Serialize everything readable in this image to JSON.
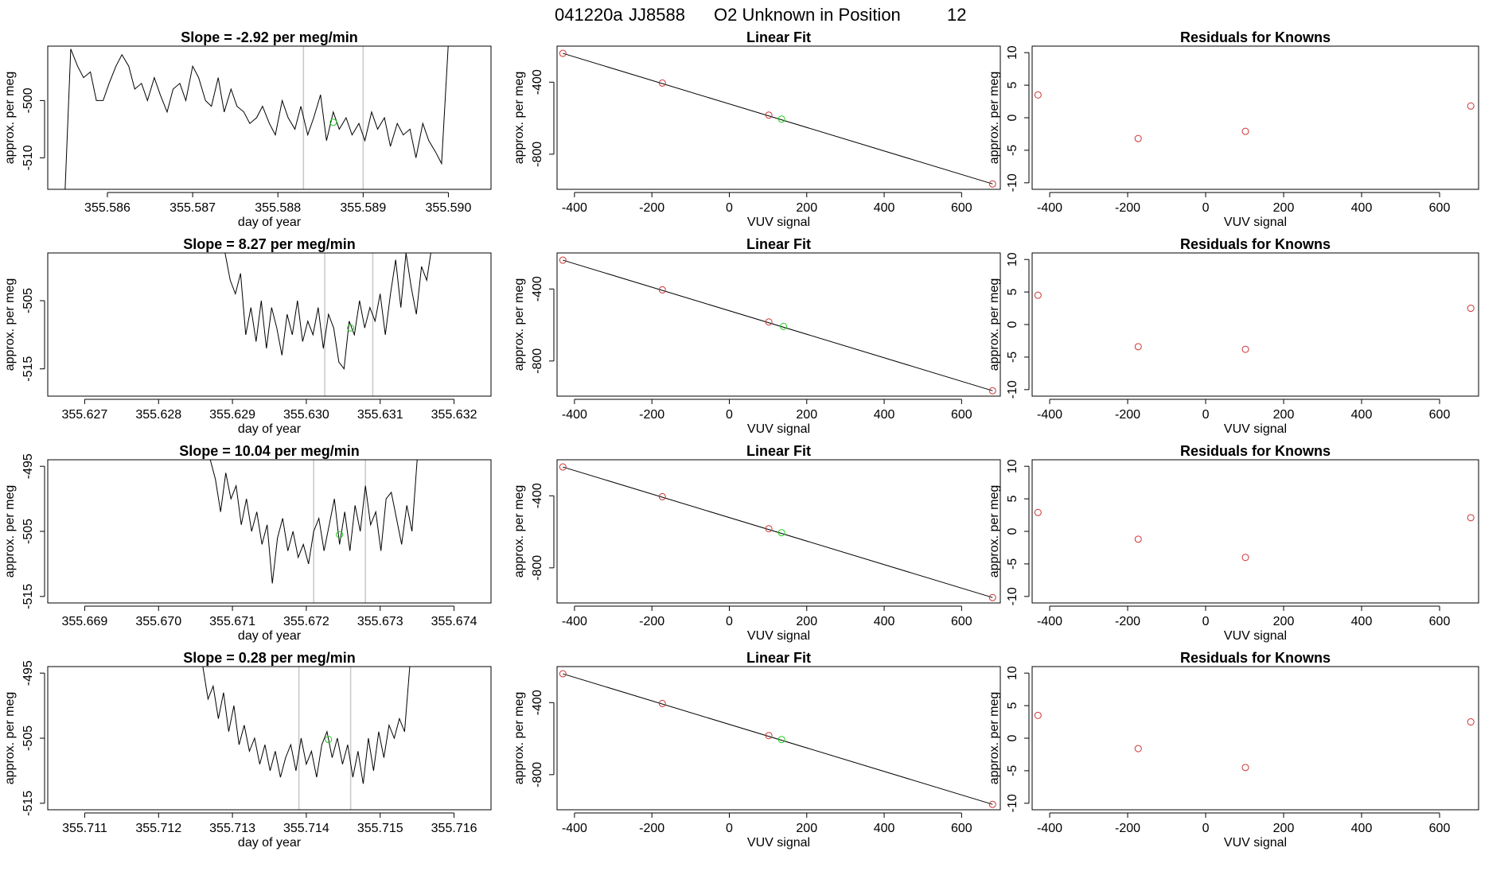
{
  "figure": {
    "title_parts": [
      "041220a",
      "JJ8588",
      "O2 Unknown in Position",
      "12"
    ]
  },
  "colors": {
    "line": "#000000",
    "known": "#cc3333",
    "unknown": "#22cc22",
    "marker": "#c8c8c8",
    "axis": "#000000"
  },
  "chart_data": [
    {
      "type": "line",
      "row": 1,
      "title": "Slope =  -2.92  per meg/min",
      "xlabel": "day of year",
      "ylabel": "approx. per meg",
      "xlim": [
        355.5853,
        355.5905
      ],
      "ylim": [
        -515.5,
        -490.5
      ],
      "xticks": [
        355.586,
        355.587,
        355.588,
        355.589,
        355.59
      ],
      "xtick_labels": [
        "355.586",
        "355.587",
        "355.588",
        "355.589",
        "355.590"
      ],
      "yticks": [
        -500,
        -510
      ],
      "ytick_labels": [
        "-500",
        "-510"
      ],
      "x": [
        355.5855,
        355.58557,
        355.58565,
        355.58572,
        355.5858,
        355.58587,
        355.58595,
        355.58602,
        355.5861,
        355.58617,
        355.58625,
        355.58632,
        355.5864,
        355.58647,
        355.58655,
        355.58662,
        355.5867,
        355.58677,
        355.58685,
        355.58692,
        355.587,
        355.58707,
        355.58715,
        355.58722,
        355.5873,
        355.58737,
        355.58745,
        355.58752,
        355.5876,
        355.58767,
        355.58775,
        355.58782,
        355.5879,
        355.58797,
        355.58805,
        355.58812,
        355.5882,
        355.58827,
        355.58835,
        355.58842,
        355.5885,
        355.58857,
        355.58865,
        355.58872,
        355.5888,
        355.58887,
        355.58895,
        355.58902,
        355.5891,
        355.58917,
        355.58925,
        355.58932,
        355.5894,
        355.58947,
        355.58955,
        355.58962,
        355.5897,
        355.58977,
        355.58985,
        355.58992,
        355.59
      ],
      "y": [
        -517,
        -491,
        -494,
        -496,
        -495,
        -500,
        -500,
        -497,
        -494,
        -492,
        -494,
        -498,
        -497,
        -500,
        -496,
        -499,
        -502,
        -498,
        -497,
        -500,
        -494,
        -496,
        -500,
        -501,
        -496,
        -502,
        -498,
        -501,
        -502,
        -504,
        -503,
        -501,
        -504,
        -506,
        -500,
        -503,
        -505,
        -501,
        -506,
        -503,
        -499,
        -507,
        -502,
        -505,
        -503,
        -506,
        -504,
        -507,
        -502,
        -505,
        -503,
        -508,
        -504,
        -506,
        -505,
        -510,
        -504,
        -507,
        -509,
        -511,
        -490
      ],
      "markers_x": [
        355.5883,
        355.589
      ],
      "unknown_point": {
        "x": 355.58865,
        "y": -503.8
      }
    },
    {
      "type": "scatter",
      "row": 1,
      "title": "Linear Fit",
      "xlabel": "VUV signal",
      "ylabel": "approx. per meg",
      "xlim": [
        -445,
        700
      ],
      "ylim": [
        -995,
        -200
      ],
      "xticks": [
        -400,
        -200,
        0,
        200,
        400,
        600
      ],
      "xtick_labels": [
        "-400",
        "-200",
        "0",
        "200",
        "400",
        "600"
      ],
      "yticks": [
        -400,
        -800
      ],
      "ytick_labels": [
        "-400",
        "-800"
      ],
      "fit_line": {
        "x": [
          -430,
          680
        ],
        "y": [
          -240,
          -965
        ]
      },
      "known_points": {
        "x": [
          -430,
          -173,
          102,
          680
        ],
        "y": [
          -240,
          -405,
          -583,
          -965
        ]
      },
      "unknown_point": {
        "x": 135,
        "y": -605
      }
    },
    {
      "type": "scatter",
      "row": 1,
      "title": "Residuals for Knowns",
      "xlabel": "VUV signal",
      "ylabel": "approx. per meg",
      "xlim": [
        -445,
        700
      ],
      "ylim": [
        -11,
        11
      ],
      "xticks": [
        -400,
        -200,
        0,
        200,
        400,
        600
      ],
      "xtick_labels": [
        "-400",
        "-200",
        "0",
        "200",
        "400",
        "600"
      ],
      "yticks": [
        10,
        5,
        0,
        -5,
        -10
      ],
      "ytick_labels": [
        "10",
        "5",
        "0",
        "-5",
        "-10"
      ],
      "known_points": {
        "x": [
          -430,
          -173,
          102,
          680
        ],
        "y": [
          3.5,
          -3.2,
          -2.1,
          1.8
        ]
      }
    },
    {
      "type": "line",
      "row": 2,
      "title": "Slope =  8.27  per meg/min",
      "xlabel": "day of year",
      "ylabel": "approx. per meg",
      "xlim": [
        355.6265,
        355.6325
      ],
      "ylim": [
        -519,
        -498
      ],
      "xticks": [
        355.627,
        355.628,
        355.629,
        355.63,
        355.631,
        355.632
      ],
      "xtick_labels": [
        "355.627",
        "355.628",
        "355.629",
        "355.630",
        "355.631",
        "355.632"
      ],
      "yticks": [
        -505,
        -515
      ],
      "ytick_labels": [
        "-505",
        "-515"
      ],
      "x": [
        355.6289,
        355.62897,
        355.62904,
        355.62911,
        355.62918,
        355.62925,
        355.62932,
        355.62939,
        355.62946,
        355.62953,
        355.6296,
        355.62967,
        355.62974,
        355.62981,
        355.62988,
        355.62995,
        355.63002,
        355.63009,
        355.63016,
        355.63023,
        355.6303,
        355.63037,
        355.63044,
        355.63051,
        355.63058,
        355.63065,
        355.63072,
        355.63079,
        355.63086,
        355.63093,
        355.631,
        355.63107,
        355.63114,
        355.63121,
        355.63128,
        355.63135,
        355.63142,
        355.63149,
        355.63156,
        355.63163,
        355.6317
      ],
      "y": [
        -498,
        -502,
        -504,
        -501,
        -510,
        -506,
        -511,
        -505,
        -512,
        -506,
        -509,
        -513,
        -507,
        -510,
        -505,
        -511,
        -508,
        -510,
        -506,
        -512,
        -507,
        -509,
        -514,
        -515,
        -508,
        -510,
        -505,
        -509,
        -506,
        -508,
        -504,
        -510,
        -504,
        -499,
        -506,
        -498,
        -503,
        -507,
        -500,
        -502,
        -497
      ],
      "markers_x": [
        355.63025,
        355.6309
      ],
      "unknown_point": {
        "x": 355.6306,
        "y": -509
      }
    },
    {
      "type": "scatter",
      "row": 2,
      "title": "Linear Fit",
      "xlabel": "VUV signal",
      "ylabel": "approx. per meg",
      "xlim": [
        -445,
        700
      ],
      "ylim": [
        -995,
        -200
      ],
      "xticks": [
        -400,
        -200,
        0,
        200,
        400,
        600
      ],
      "xtick_labels": [
        "-400",
        "-200",
        "0",
        "200",
        "400",
        "600"
      ],
      "yticks": [
        -400,
        -800
      ],
      "ytick_labels": [
        "-400",
        "-800"
      ],
      "fit_line": {
        "x": [
          -430,
          680
        ],
        "y": [
          -240,
          -965
        ]
      },
      "known_points": {
        "x": [
          -430,
          -173,
          102,
          680
        ],
        "y": [
          -240,
          -405,
          -583,
          -965
        ]
      },
      "unknown_point": {
        "x": 140,
        "y": -608
      }
    },
    {
      "type": "scatter",
      "row": 2,
      "title": "Residuals for Knowns",
      "xlabel": "VUV signal",
      "ylabel": "approx. per meg",
      "xlim": [
        -445,
        700
      ],
      "ylim": [
        -11,
        11
      ],
      "xticks": [
        -400,
        -200,
        0,
        200,
        400,
        600
      ],
      "xtick_labels": [
        "-400",
        "-200",
        "0",
        "200",
        "400",
        "600"
      ],
      "yticks": [
        10,
        5,
        0,
        -5,
        -10
      ],
      "ytick_labels": [
        "10",
        "5",
        "0",
        "-5",
        "-10"
      ],
      "known_points": {
        "x": [
          -430,
          -173,
          102,
          680
        ],
        "y": [
          4.5,
          -3.4,
          -3.8,
          2.5
        ]
      }
    },
    {
      "type": "line",
      "row": 3,
      "title": "Slope =  10.04  per meg/min",
      "xlabel": "day of year",
      "ylabel": "approx. per meg",
      "xlim": [
        355.6685,
        355.6745
      ],
      "ylim": [
        -516,
        -494
      ],
      "xticks": [
        355.669,
        355.67,
        355.671,
        355.672,
        355.673,
        355.674
      ],
      "xtick_labels": [
        "355.669",
        "355.670",
        "355.671",
        "355.672",
        "355.673",
        "355.674"
      ],
      "yticks": [
        -495,
        -505,
        -515
      ],
      "ytick_labels": [
        "-495",
        "-505",
        "-515"
      ],
      "x": [
        355.6707,
        355.67077,
        355.67084,
        355.67091,
        355.67098,
        355.67105,
        355.67112,
        355.67119,
        355.67126,
        355.67133,
        355.6714,
        355.67147,
        355.67154,
        355.67161,
        355.67168,
        355.67175,
        355.67182,
        355.67189,
        355.67196,
        355.67203,
        355.6721,
        355.67217,
        355.67224,
        355.67231,
        355.67238,
        355.67245,
        355.67252,
        355.67259,
        355.67266,
        355.67273,
        355.6728,
        355.67287,
        355.67294,
        355.67301,
        355.67308,
        355.67315,
        355.67322,
        355.67329,
        355.67336,
        355.67343,
        355.6735
      ],
      "y": [
        -494,
        -497,
        -502,
        -496,
        -500,
        -498,
        -504,
        -500,
        -505,
        -502,
        -507,
        -504,
        -513,
        -506,
        -503,
        -508,
        -505,
        -509,
        -507,
        -510,
        -505,
        -503,
        -508,
        -504,
        -500,
        -507,
        -502,
        -508,
        -501,
        -505,
        -498,
        -504,
        -502,
        -508,
        -500,
        -499,
        -503,
        -507,
        -501,
        -505,
        -494
      ],
      "markers_x": [
        355.6721,
        355.6728
      ],
      "unknown_point": {
        "x": 355.67245,
        "y": -505.5
      }
    },
    {
      "type": "scatter",
      "row": 3,
      "title": "Linear Fit",
      "xlabel": "VUV signal",
      "ylabel": "approx. per meg",
      "xlim": [
        -445,
        700
      ],
      "ylim": [
        -995,
        -200
      ],
      "xticks": [
        -400,
        -200,
        0,
        200,
        400,
        600
      ],
      "xtick_labels": [
        "-400",
        "-200",
        "0",
        "200",
        "400",
        "600"
      ],
      "yticks": [
        -400,
        -800
      ],
      "ytick_labels": [
        "-400",
        "-800"
      ],
      "fit_line": {
        "x": [
          -430,
          680
        ],
        "y": [
          -240,
          -965
        ]
      },
      "known_points": {
        "x": [
          -430,
          -173,
          102,
          680
        ],
        "y": [
          -240,
          -405,
          -583,
          -965
        ]
      },
      "unknown_point": {
        "x": 135,
        "y": -605
      }
    },
    {
      "type": "scatter",
      "row": 3,
      "title": "Residuals for Knowns",
      "xlabel": "VUV signal",
      "ylabel": "approx. per meg",
      "xlim": [
        -445,
        700
      ],
      "ylim": [
        -11,
        11
      ],
      "xticks": [
        -400,
        -200,
        0,
        200,
        400,
        600
      ],
      "xtick_labels": [
        "-400",
        "-200",
        "0",
        "200",
        "400",
        "600"
      ],
      "yticks": [
        10,
        5,
        0,
        -5,
        -10
      ],
      "ytick_labels": [
        "10",
        "5",
        "0",
        "-5",
        "-10"
      ],
      "known_points": {
        "x": [
          -430,
          -173,
          102,
          680
        ],
        "y": [
          2.9,
          -1.2,
          -4.0,
          2.1
        ]
      }
    },
    {
      "type": "line",
      "row": 4,
      "title": "Slope =  0.28  per meg/min",
      "xlabel": "day of year",
      "ylabel": "approx. per meg",
      "xlim": [
        355.7105,
        355.7165
      ],
      "ylim": [
        -516,
        -494
      ],
      "xticks": [
        355.711,
        355.712,
        355.713,
        355.714,
        355.715,
        355.716
      ],
      "xtick_labels": [
        "355.711",
        "355.712",
        "355.713",
        "355.714",
        "355.715",
        "355.716"
      ],
      "yticks": [
        -495,
        -505,
        -515
      ],
      "ytick_labels": [
        "-495",
        "-505",
        "-515"
      ],
      "x": [
        355.7126,
        355.71267,
        355.71274,
        355.71281,
        355.71288,
        355.71295,
        355.71302,
        355.71309,
        355.71316,
        355.71323,
        355.7133,
        355.71337,
        355.71344,
        355.71351,
        355.71358,
        355.71365,
        355.71372,
        355.71379,
        355.71386,
        355.71393,
        355.714,
        355.71407,
        355.71414,
        355.71421,
        355.71428,
        355.71435,
        355.71442,
        355.71449,
        355.71456,
        355.71463,
        355.7147,
        355.71477,
        355.71484,
        355.71491,
        355.71498,
        355.71505,
        355.71512,
        355.71519,
        355.71526,
        355.71533,
        355.7154
      ],
      "y": [
        -494,
        -499,
        -497,
        -502,
        -498,
        -504,
        -500,
        -506,
        -503,
        -507,
        -505,
        -509,
        -506,
        -510,
        -507,
        -511,
        -508,
        -506,
        -510,
        -505,
        -509,
        -507,
        -511,
        -506,
        -504,
        -508,
        -505,
        -509,
        -506,
        -511,
        -507,
        -512,
        -505,
        -510,
        -504,
        -508,
        -503,
        -505,
        -502,
        -504,
        -494
      ],
      "markers_x": [
        355.7139,
        355.7146
      ],
      "unknown_point": {
        "x": 355.7143,
        "y": -505.2
      }
    },
    {
      "type": "scatter",
      "row": 4,
      "title": "Linear Fit",
      "xlabel": "VUV signal",
      "ylabel": "approx. per meg",
      "xlim": [
        -445,
        700
      ],
      "ylim": [
        -995,
        -200
      ],
      "xticks": [
        -400,
        -200,
        0,
        200,
        400,
        600
      ],
      "xtick_labels": [
        "-400",
        "-200",
        "0",
        "200",
        "400",
        "600"
      ],
      "yticks": [
        -400,
        -800
      ],
      "ytick_labels": [
        "-400",
        "-800"
      ],
      "fit_line": {
        "x": [
          -430,
          680
        ],
        "y": [
          -240,
          -965
        ]
      },
      "known_points": {
        "x": [
          -430,
          -173,
          102,
          680
        ],
        "y": [
          -240,
          -405,
          -583,
          -965
        ]
      },
      "unknown_point": {
        "x": 135,
        "y": -605
      }
    },
    {
      "type": "scatter",
      "row": 4,
      "title": "Residuals for Knowns",
      "xlabel": "VUV signal",
      "ylabel": "approx. per meg",
      "xlim": [
        -445,
        700
      ],
      "ylim": [
        -11,
        11
      ],
      "xticks": [
        -400,
        -200,
        0,
        200,
        400,
        600
      ],
      "xtick_labels": [
        "-400",
        "-200",
        "0",
        "200",
        "400",
        "600"
      ],
      "yticks": [
        10,
        5,
        0,
        -5,
        -10
      ],
      "ytick_labels": [
        "10",
        "5",
        "0",
        "-5",
        "-10"
      ],
      "known_points": {
        "x": [
          -430,
          -173,
          102,
          680
        ],
        "y": [
          3.5,
          -1.6,
          -4.5,
          2.5
        ]
      }
    }
  ]
}
